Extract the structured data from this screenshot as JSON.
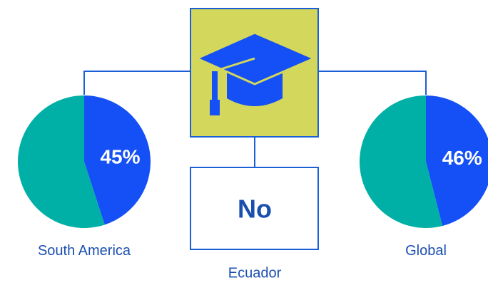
{
  "chart_data": [
    {
      "type": "pie",
      "title": "South America",
      "values": [
        45,
        55
      ],
      "value_labels": [
        "45%",
        null
      ],
      "colors": [
        "#1450f5",
        "#00b0a6"
      ]
    },
    {
      "type": "pie",
      "title": "Global",
      "values": [
        46,
        54
      ],
      "value_labels": [
        "46%",
        null
      ],
      "colors": [
        "#1450f5",
        "#00b0a6"
      ]
    }
  ],
  "ecuador": {
    "value": "No",
    "label": "Ecuador"
  }
}
